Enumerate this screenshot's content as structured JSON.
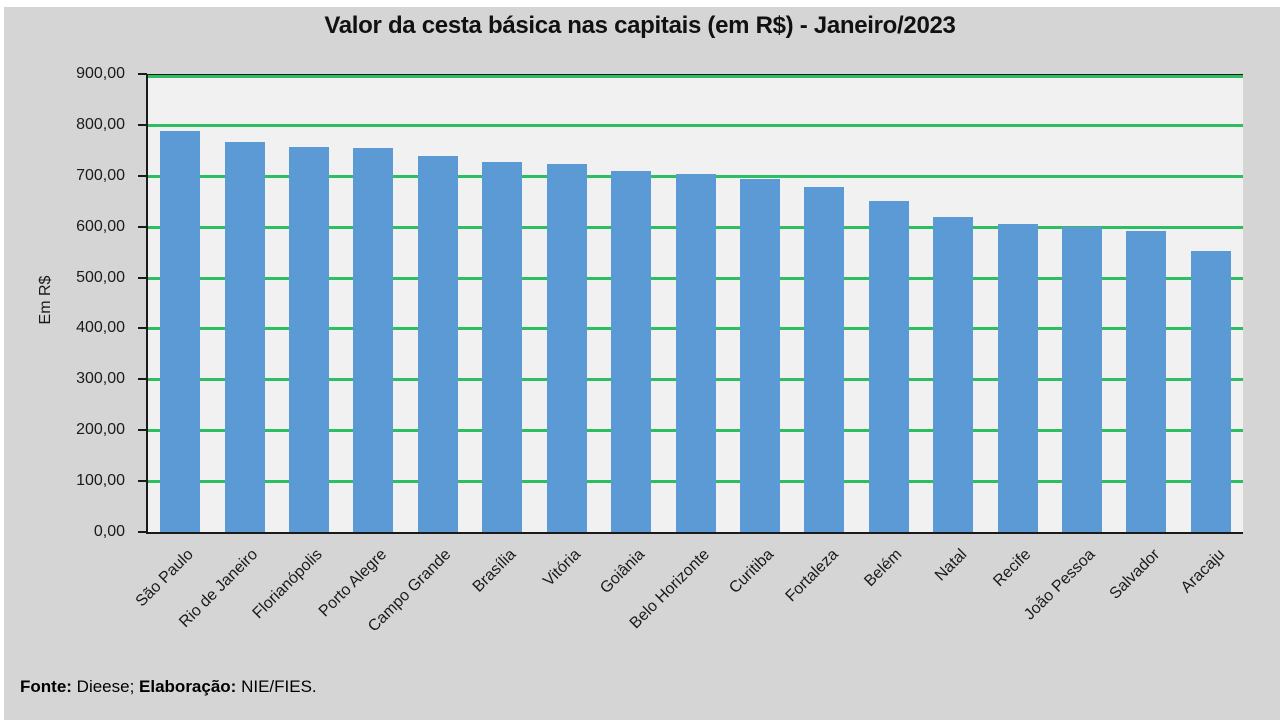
{
  "page": {
    "background_color": "#D5D5D5"
  },
  "header": {
    "title": "Valor da cesta básica nas capitais (em R$) - Janeiro/2023"
  },
  "y_axis": {
    "title": "Em R$"
  },
  "footer": {
    "parts": [
      {
        "text": "Fonte:",
        "bold": true
      },
      {
        "text": " Dieese; ",
        "bold": false
      },
      {
        "text": "Elaboração:",
        "bold": true
      },
      {
        "text": " NIE/FIES.",
        "bold": false
      }
    ]
  },
  "chart_data": {
    "type": "bar",
    "title": "Valor da cesta básica nas capitais (em R$) - Janeiro/2023",
    "categories": [
      "São Paulo",
      "Rio de Janeiro",
      "Florianópolis",
      "Porto Alegre",
      "Campo Grande",
      "Brasília",
      "Vitória",
      "Goiânia",
      "Belo Horizonte",
      "Curitiba",
      "Fortaleza",
      "Belém",
      "Natal",
      "Recife",
      "João Pessoa",
      "Salvador",
      "Aracaju"
    ],
    "values": [
      790,
      768,
      758,
      757,
      741,
      728,
      724,
      710,
      705,
      695,
      680,
      652,
      620,
      607,
      600,
      593,
      554
    ],
    "xlabel": "",
    "ylabel": "Em R$",
    "ylim": [
      0,
      900
    ],
    "ytick_step": 100,
    "ytick_labels": [
      "0,00",
      "100,00",
      "200,00",
      "300,00",
      "400,00",
      "500,00",
      "600,00",
      "700,00",
      "800,00",
      "900,00"
    ],
    "grid": true,
    "legend_position": "none",
    "bar_color": "#5B9AD5",
    "grid_color": "#2DBE62",
    "plot_background": "#F1F1F1",
    "source_note": "Fonte: Dieese; Elaboração: NIE/FIES."
  }
}
